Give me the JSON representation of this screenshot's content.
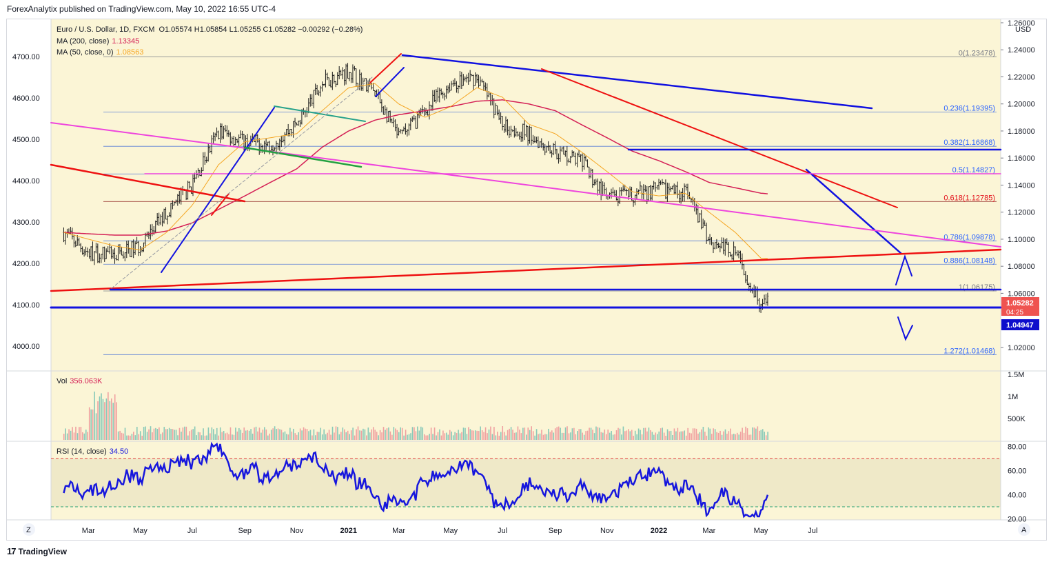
{
  "header": {
    "publisher": "ForexAnalytix published on TradingView.com, May 10, 2022 16:55 UTC-4"
  },
  "footer": {
    "brand": "TradingView",
    "logo_glyph": "17"
  },
  "legend": {
    "symbol": "Euro / U.S. Dollar, 1D, FXCM",
    "ohlc": "O1.05574  H1.05854  L1.05255  C1.05282  −0.00292 (−0.28%)",
    "ma200_label": "MA (200, close)",
    "ma200_value": "1.13345",
    "ma50_label": "MA (50, close, 0)",
    "ma50_value": "1.08563"
  },
  "volume": {
    "label": "Vol",
    "value": "356.063K",
    "axis": [
      "1.5M",
      "1M",
      "500K"
    ]
  },
  "rsi": {
    "label": "RSI (14, close)",
    "value": "34.50",
    "axis": [
      "80.00",
      "60.00",
      "40.00",
      "20.00"
    ]
  },
  "price_axis": {
    "currency": "USD",
    "ticks": [
      "1.26000",
      "1.24000",
      "1.22000",
      "1.20000",
      "1.18000",
      "1.16000",
      "1.14000",
      "1.12000",
      "1.10000",
      "1.08000",
      "1.06000",
      "1.02000"
    ],
    "current_price": "1.05282",
    "countdown": "04:25",
    "other_price": "1.04947"
  },
  "left_axis": [
    "4700.00",
    "4600.00",
    "4500.00",
    "4400.00",
    "4300.00",
    "4200.00",
    "4100.00",
    "4000.00"
  ],
  "time_axis": [
    "Mar",
    "May",
    "Jul",
    "Sep",
    "Nov",
    "2021",
    "Mar",
    "May",
    "Jul",
    "Sep",
    "Nov",
    "2022",
    "Mar",
    "May",
    "Jul"
  ],
  "fib_levels": [
    {
      "label": "0(1.23478)"
    },
    {
      "label": "0.236(1.19395)"
    },
    {
      "label": "0.382(1.16868)"
    },
    {
      "label": "0.5(1.14827)"
    },
    {
      "label": "0.618(1.12785)"
    },
    {
      "label": "0.786(1.09878)"
    },
    {
      "label": "0.886(1.08148)"
    },
    {
      "label": "1(1.06175)"
    },
    {
      "label": "1.272(1.01468)"
    }
  ],
  "buttons": {
    "z": "Z",
    "a": "A"
  },
  "colors": {
    "background": "#fbf5d6",
    "candle": "#1a1a1a",
    "ma50": "#f5a623",
    "ma200": "#d41f55",
    "blue_lines": "#1111e0",
    "red_lines": "#ee1111",
    "magenta": "#ee44dd",
    "teal": "#27a28a",
    "green": "#22a040",
    "fib_blue": "#2962ff",
    "fib_red": "#e3101a",
    "rsi_line": "#1616dd"
  },
  "chart_data": {
    "type": "line",
    "title": "Euro / U.S. Dollar, 1D, FXCM",
    "ylabel": "USD",
    "ylim": [
      1.0,
      1.26
    ],
    "x": [
      "2020-02-01",
      "2020-03-01",
      "2020-04-01",
      "2020-05-01",
      "2020-06-01",
      "2020-07-01",
      "2020-08-01",
      "2020-09-01",
      "2020-10-01",
      "2020-11-01",
      "2020-12-01",
      "2021-01-01",
      "2021-02-01",
      "2021-03-01",
      "2021-04-01",
      "2021-05-01",
      "2021-06-01",
      "2021-07-01",
      "2021-08-01",
      "2021-09-01",
      "2021-10-01",
      "2021-11-01",
      "2021-12-01",
      "2022-01-01",
      "2022-02-01",
      "2022-03-01",
      "2022-04-01",
      "2022-05-01",
      "2022-05-10"
    ],
    "series": [
      {
        "name": "Euro / U.S. Dollar",
        "values": [
          1.105,
          1.09,
          1.088,
          1.095,
          1.12,
          1.14,
          1.18,
          1.172,
          1.17,
          1.185,
          1.215,
          1.225,
          1.208,
          1.175,
          1.195,
          1.215,
          1.22,
          1.185,
          1.178,
          1.165,
          1.158,
          1.13,
          1.132,
          1.137,
          1.135,
          1.1,
          1.09,
          1.052,
          1.0528
        ]
      },
      {
        "name": "MA (50, close, 0)",
        "values": [
          1.105,
          1.1,
          1.095,
          1.092,
          1.105,
          1.125,
          1.155,
          1.172,
          1.175,
          1.178,
          1.195,
          1.212,
          1.215,
          1.2,
          1.19,
          1.198,
          1.212,
          1.205,
          1.185,
          1.178,
          1.165,
          1.15,
          1.135,
          1.132,
          1.134,
          1.12,
          1.105,
          1.086,
          1.0856
        ]
      },
      {
        "name": "MA (200, close)",
        "values": [
          1.105,
          1.104,
          1.103,
          1.103,
          1.106,
          1.112,
          1.122,
          1.132,
          1.142,
          1.152,
          1.168,
          1.18,
          1.188,
          1.192,
          1.195,
          1.198,
          1.202,
          1.203,
          1.2,
          1.195,
          1.185,
          1.175,
          1.165,
          1.158,
          1.15,
          1.142,
          1.138,
          1.134,
          1.1335
        ]
      }
    ],
    "volume": {
      "name": "Vol",
      "last": "356.063K"
    },
    "rsi": {
      "name": "RSI (14, close)",
      "last": 34.5,
      "upper": 70,
      "lower": 30,
      "ylim": [
        20,
        85
      ]
    },
    "fibonacci": [
      {
        "ratio": 0,
        "price": 1.23478
      },
      {
        "ratio": 0.236,
        "price": 1.19395
      },
      {
        "ratio": 0.382,
        "price": 1.16868
      },
      {
        "ratio": 0.5,
        "price": 1.14827
      },
      {
        "ratio": 0.618,
        "price": 1.12785
      },
      {
        "ratio": 0.786,
        "price": 1.09878
      },
      {
        "ratio": 0.886,
        "price": 1.08148
      },
      {
        "ratio": 1,
        "price": 1.06175
      },
      {
        "ratio": 1.272,
        "price": 1.01468
      }
    ],
    "grid": false
  }
}
